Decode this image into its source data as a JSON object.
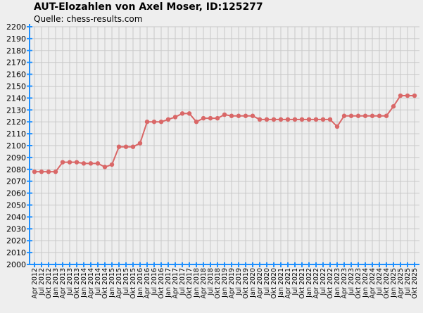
{
  "header": {
    "title": "AUT-Elozahlen von Axel Moser, ID:125277",
    "subtitle": "Quelle: chess-results.com"
  },
  "colors": {
    "background": "#eeeeee",
    "grid": "#c8c8c8",
    "axis": "#1e90ff",
    "line": "#d96767",
    "marker": "#d96767"
  },
  "chart_data": {
    "type": "line",
    "title": "AUT-Elozahlen von Axel Moser, ID:125277",
    "subtitle": "Quelle: chess-results.com",
    "xlabel": "",
    "ylabel": "",
    "ylim": [
      2000,
      2200
    ],
    "yticks": [
      2000,
      2010,
      2020,
      2030,
      2040,
      2050,
      2060,
      2070,
      2080,
      2090,
      2100,
      2110,
      2120,
      2130,
      2140,
      2150,
      2160,
      2170,
      2180,
      2190,
      2200
    ],
    "grid": true,
    "legend": "none",
    "categories": [
      "Apr 2012",
      "Jul 2012",
      "Okt 2012",
      "Jan 2013",
      "Apr 2013",
      "Jul 2013",
      "Okt 2013",
      "Jan 2014",
      "Apr 2014",
      "Jul 2014",
      "Okt 2014",
      "Jan 2015",
      "Apr 2015",
      "Jul 2015",
      "Okt 2015",
      "Jan 2016",
      "Apr 2016",
      "Jul 2016",
      "Okt 2016",
      "Jan 2017",
      "Apr 2017",
      "Jul 2017",
      "Okt 2017",
      "Jan 2018",
      "Apr 2018",
      "Jul 2018",
      "Okt 2018",
      "Jan 2019",
      "Apr 2019",
      "Jul 2019",
      "Okt 2019",
      "Jan 2020",
      "Apr 2020",
      "Jul 2020",
      "Okt 2020",
      "Jan 2021",
      "Apr 2021",
      "Jul 2021",
      "Okt 2021",
      "Jan 2022",
      "Apr 2022",
      "Jul 2022",
      "Okt 2022",
      "Jan 2023",
      "Apr 2023",
      "Jul 2023",
      "Okt 2023",
      "Jan 2024",
      "Apr 2024",
      "Jul 2024",
      "Okt 2024",
      "Jan 2025",
      "Apr 2025",
      "Jul 2025",
      "Okt 2025"
    ],
    "series": [
      {
        "values": [
          2078,
          2078,
          2078,
          2078,
          2086,
          2086,
          2086,
          2085,
          2085,
          2085,
          2082,
          2084,
          2099,
          2099,
          2099,
          2102,
          2120,
          2120,
          2120,
          2122,
          2124,
          2127,
          2127,
          2120,
          2123,
          2123,
          2123,
          2126,
          2125,
          2125,
          2125,
          2125,
          2122,
          2122,
          2122,
          2122,
          2122,
          2122,
          2122,
          2122,
          2122,
          2122,
          2122,
          2116,
          2125,
          2125,
          2125,
          2125,
          2125,
          2125,
          2125,
          2133,
          2142,
          2142,
          2142
        ]
      }
    ]
  }
}
